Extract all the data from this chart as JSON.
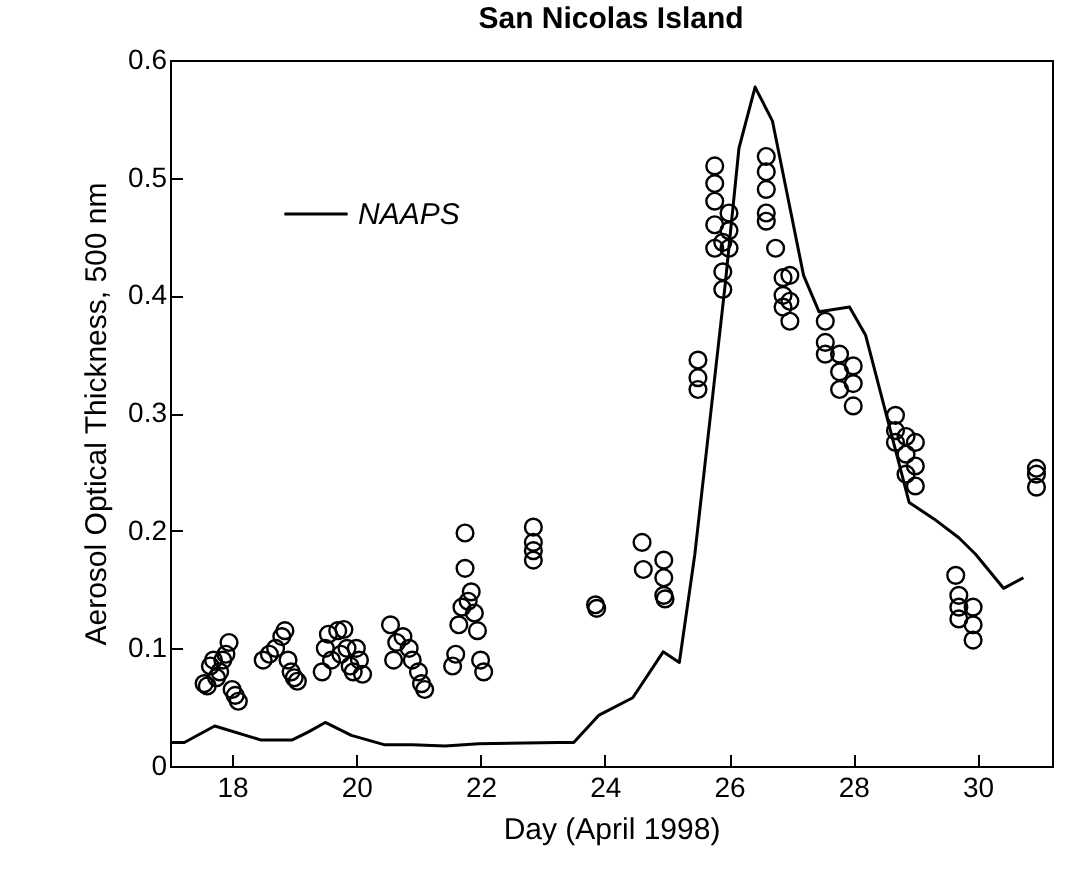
{
  "chart_data": {
    "type": "scatter",
    "title": "San Nicolas Island",
    "xlabel": "Day (April 1998)",
    "ylabel": "Aerosol Optical Thickness, 500 nm",
    "xlim": [
      17,
      31.2
    ],
    "xticks": [
      18,
      20,
      22,
      24,
      26,
      28,
      30
    ],
    "ylim": [
      0,
      0.6
    ],
    "yticks": [
      0,
      0.1,
      0.2,
      0.3,
      0.4,
      0.5,
      0.6
    ],
    "grid": false,
    "legend": "top left",
    "series": [
      {
        "type": "line",
        "name": "NAAPS",
        "color": "#000000",
        "x": [
          17,
          17.23,
          17.72,
          18.47,
          18.96,
          19.23,
          19.5,
          19.92,
          20.46,
          20.9,
          21.43,
          21.97,
          23.26,
          23.5,
          23.9,
          24.45,
          24.94,
          25.2,
          25.45,
          25.94,
          26.16,
          26.42,
          26.7,
          27.2,
          27.45,
          27.94,
          28.2,
          28.9,
          29.3,
          29.7,
          29.97,
          30.42,
          30.74
        ],
        "values": [
          0.02,
          0.02,
          0.034,
          0.022,
          0.022,
          0.029,
          0.037,
          0.026,
          0.018,
          0.018,
          0.017,
          0.019,
          0.02,
          0.02,
          0.043,
          0.058,
          0.097,
          0.088,
          0.18,
          0.41,
          0.525,
          0.577,
          0.548,
          0.417,
          0.386,
          0.39,
          0.366,
          0.224,
          0.21,
          0.194,
          0.18,
          0.151,
          0.16
        ]
      },
      {
        "type": "scatter",
        "color": "#000000",
        "marker": "circle",
        "x": [
          17.55,
          17.6,
          17.65,
          17.7,
          17.75,
          17.8,
          17.85,
          17.9,
          17.95,
          18.0,
          18.05,
          18.1,
          18.5,
          18.6,
          18.7,
          18.8,
          18.85,
          18.9,
          18.95,
          19.0,
          19.05,
          19.45,
          19.5,
          19.55,
          19.6,
          19.7,
          19.75,
          19.8,
          19.85,
          19.9,
          19.95,
          20.0,
          20.05,
          20.1,
          20.55,
          20.6,
          20.65,
          20.75,
          20.85,
          20.9,
          21.0,
          21.05,
          21.1,
          21.55,
          21.6,
          21.65,
          21.7,
          21.75,
          21.75,
          21.8,
          21.85,
          21.9,
          21.95,
          22.0,
          22.05,
          22.85,
          22.85,
          22.85,
          22.85,
          23.85,
          23.87,
          24.6,
          24.62,
          24.95,
          24.95,
          24.95,
          24.97,
          25.5,
          25.5,
          25.5,
          25.77,
          25.77,
          25.77,
          25.77,
          25.77,
          25.9,
          25.9,
          25.9,
          26.0,
          26.0,
          26.0,
          26.6,
          26.6,
          26.6,
          26.6,
          26.6,
          26.75,
          26.87,
          26.87,
          26.87,
          26.98,
          26.98,
          26.98,
          27.55,
          27.55,
          27.55,
          27.78,
          27.78,
          27.78,
          28.0,
          28.0,
          28.0,
          28.68,
          28.68,
          28.68,
          28.85,
          28.85,
          28.85,
          29.0,
          29.0,
          29.0,
          29.65,
          29.7,
          29.7,
          29.7,
          29.93,
          29.93,
          29.93,
          30.95,
          30.95,
          30.95
        ],
        "values": [
          0.07,
          0.068,
          0.085,
          0.09,
          0.075,
          0.08,
          0.09,
          0.095,
          0.105,
          0.065,
          0.06,
          0.055,
          0.09,
          0.095,
          0.1,
          0.11,
          0.115,
          0.09,
          0.08,
          0.075,
          0.072,
          0.08,
          0.1,
          0.112,
          0.09,
          0.115,
          0.095,
          0.116,
          0.1,
          0.085,
          0.08,
          0.1,
          0.09,
          0.078,
          0.12,
          0.09,
          0.105,
          0.11,
          0.1,
          0.09,
          0.08,
          0.07,
          0.065,
          0.085,
          0.095,
          0.12,
          0.135,
          0.198,
          0.168,
          0.14,
          0.148,
          0.13,
          0.115,
          0.09,
          0.08,
          0.175,
          0.183,
          0.19,
          0.203,
          0.137,
          0.134,
          0.19,
          0.167,
          0.175,
          0.16,
          0.145,
          0.142,
          0.345,
          0.33,
          0.32,
          0.51,
          0.495,
          0.48,
          0.46,
          0.44,
          0.445,
          0.42,
          0.405,
          0.47,
          0.455,
          0.44,
          0.518,
          0.505,
          0.49,
          0.47,
          0.463,
          0.44,
          0.415,
          0.4,
          0.39,
          0.417,
          0.395,
          0.378,
          0.378,
          0.36,
          0.35,
          0.35,
          0.335,
          0.32,
          0.34,
          0.325,
          0.306,
          0.298,
          0.285,
          0.275,
          0.28,
          0.265,
          0.248,
          0.275,
          0.255,
          0.238,
          0.162,
          0.145,
          0.135,
          0.125,
          0.135,
          0.12,
          0.107,
          0.253,
          0.248,
          0.237
        ]
      }
    ]
  }
}
